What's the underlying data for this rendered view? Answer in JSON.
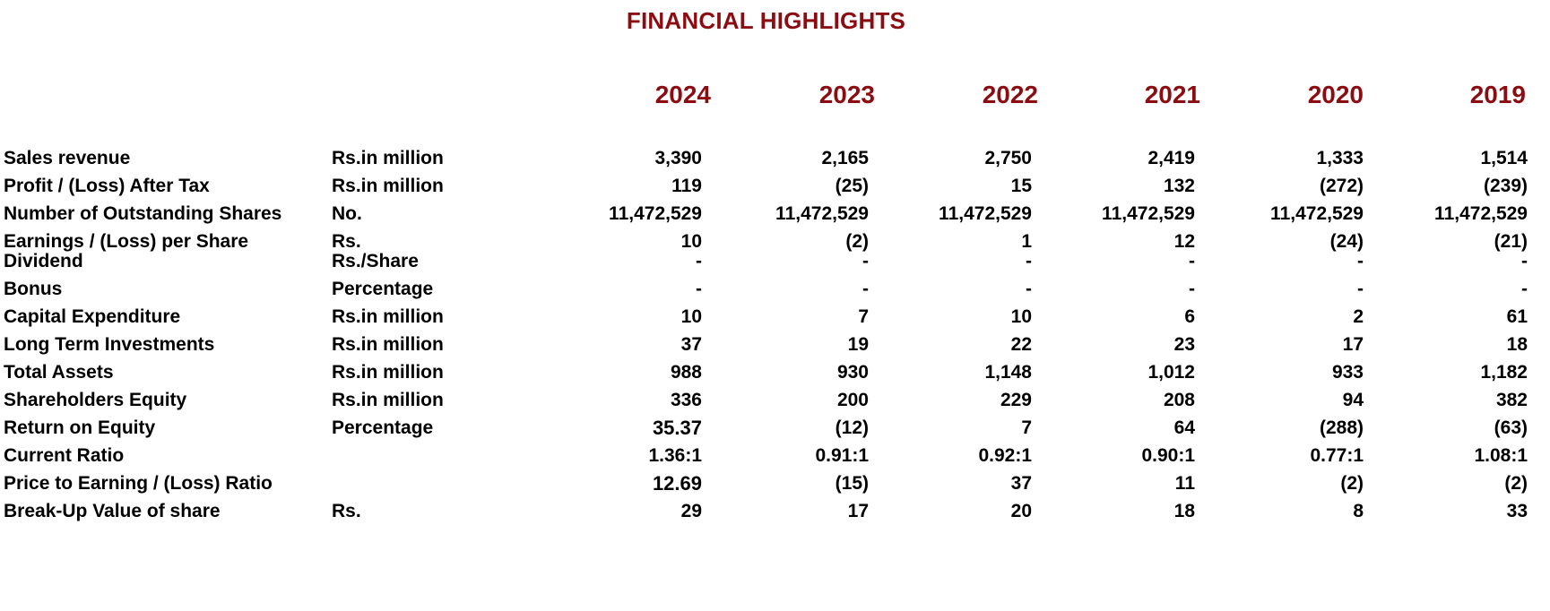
{
  "title": "FINANCIAL HIGHLIGHTS",
  "years": [
    "2024",
    "2023",
    "2022",
    "2021",
    "2020",
    "2019"
  ],
  "rows": [
    {
      "label": "Sales revenue",
      "unit": "Rs.in million",
      "values": [
        "3,390",
        "2,165",
        "2,750",
        "2,419",
        "1,333",
        "1,514"
      ]
    },
    {
      "label": "Profit / (Loss)  After Tax",
      "unit": "Rs.in million",
      "values": [
        "119",
        "(25)",
        "15",
        "132",
        "(272)",
        "(239)"
      ]
    },
    {
      "label": "Number of Outstanding Shares",
      "unit": "No.",
      "values": [
        "11,472,529",
        "11,472,529",
        "11,472,529",
        "11,472,529",
        "11,472,529",
        "11,472,529"
      ]
    },
    {
      "label": "Earnings / (Loss) per Share",
      "unit": "Rs.",
      "values": [
        "10",
        "(2)",
        "1",
        "12",
        "(24)",
        "(21)"
      ]
    },
    {
      "label": "Dividend",
      "unit": "Rs./Share",
      "values": [
        "-",
        "-",
        "-",
        "-",
        "-",
        "-"
      ]
    },
    {
      "label": "Bonus",
      "unit": "Percentage",
      "values": [
        "-",
        "-",
        "-",
        "-",
        "-",
        "-"
      ]
    },
    {
      "label": "Capital Expenditure",
      "unit": "Rs.in million",
      "values": [
        "10",
        "7",
        "10",
        "6",
        "2",
        "61"
      ]
    },
    {
      "label": "Long Term Investments",
      "unit": "Rs.in million",
      "values": [
        "37",
        "19",
        "22",
        "23",
        "17",
        "18"
      ]
    },
    {
      "label": "Total Assets",
      "unit": "Rs.in million",
      "values": [
        "988",
        "930",
        "1,148",
        "1,012",
        "933",
        "1,182"
      ]
    },
    {
      "label": "Shareholders Equity",
      "unit": "Rs.in million",
      "values": [
        "336",
        "200",
        "229",
        "208",
        "94",
        "382"
      ]
    },
    {
      "label": "Return on Equity",
      "unit": "Percentage",
      "values": [
        "35.37",
        "(12)",
        "7",
        "64",
        "(288)",
        "(63)"
      ]
    },
    {
      "label": "Current Ratio",
      "unit": "",
      "values": [
        "1.36:1",
        "0.91:1",
        "0.92:1",
        "0.90:1",
        "0.77:1",
        "1.08:1"
      ]
    },
    {
      "label": "Price to Earning / (Loss) Ratio",
      "unit": "",
      "values": [
        "12.69",
        "(15)",
        "37",
        "11",
        "(2)",
        "(2)"
      ]
    },
    {
      "label": "Break-Up Value of share",
      "unit": "Rs.",
      "values": [
        "29",
        "17",
        "20",
        "18",
        "8",
        "33"
      ]
    }
  ]
}
